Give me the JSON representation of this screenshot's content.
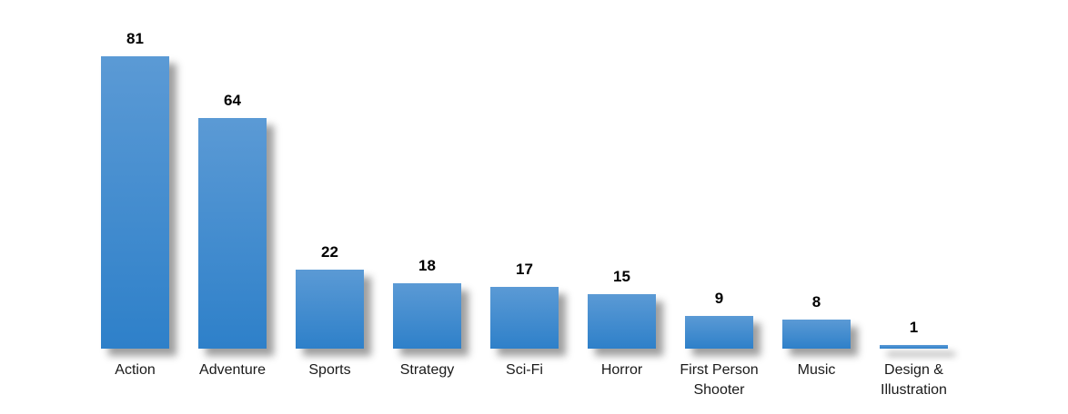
{
  "chart_data": {
    "type": "bar",
    "categories": [
      "Action",
      "Adventure",
      "Sports",
      "Strategy",
      "Sci-Fi",
      "Horror",
      "First Person Shooter",
      "Music",
      "Design & Illustration"
    ],
    "values": [
      81,
      64,
      22,
      18,
      17,
      15,
      9,
      8,
      1
    ],
    "data_labels": [
      "81",
      "64",
      "22",
      "18",
      "17",
      "15",
      "9",
      "8",
      "1"
    ],
    "title": "",
    "xlabel": "",
    "ylabel": "",
    "ylim": [
      0,
      81
    ],
    "grid": false,
    "legend": false,
    "axis_lines": false,
    "colors": {
      "bar_gradient_top": "#5b9ad5",
      "bar_gradient_bottom": "#2e80c9",
      "value_label": "#000000",
      "category_label": "#1a1a1a",
      "background": "#ffffff"
    }
  }
}
